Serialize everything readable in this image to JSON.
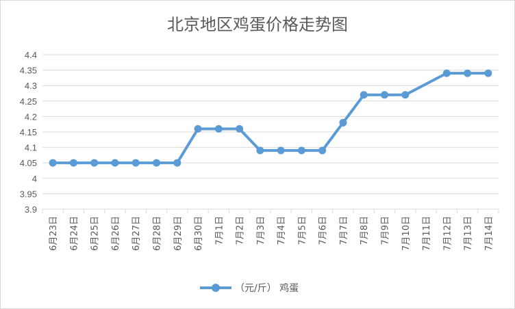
{
  "chart_data": {
    "type": "line",
    "title": "北京地区鸡蛋价格走势图",
    "categories": [
      "6月23日",
      "6月24日",
      "6月25日",
      "6月26日",
      "6月27日",
      "6月28日",
      "6月29日",
      "6月30日",
      "7月1日",
      "7月2日",
      "7月3日",
      "7月4日",
      "7月5日",
      "7月6日",
      "7月7日",
      "7月8日",
      "7月9日",
      "7月10日",
      "7月11日",
      "7月12日",
      "7月13日",
      "7月14日"
    ],
    "series": [
      {
        "name": "（元/斤） 鸡蛋",
        "color": "#5b9bd5",
        "values": [
          4.05,
          4.05,
          4.05,
          4.05,
          4.05,
          4.05,
          4.05,
          4.16,
          4.16,
          4.16,
          4.09,
          4.09,
          4.09,
          4.09,
          4.18,
          4.27,
          4.27,
          4.27,
          null,
          4.34,
          4.34,
          4.34
        ]
      }
    ],
    "yticks": [
      "4.4",
      "4.35",
      "4.3",
      "4.25",
      "4.2",
      "4.15",
      "4.1",
      "4.05",
      "4",
      "3.95",
      "3.9"
    ],
    "ylim": [
      3.9,
      4.4
    ],
    "grid": true,
    "legend_position": "bottom"
  }
}
